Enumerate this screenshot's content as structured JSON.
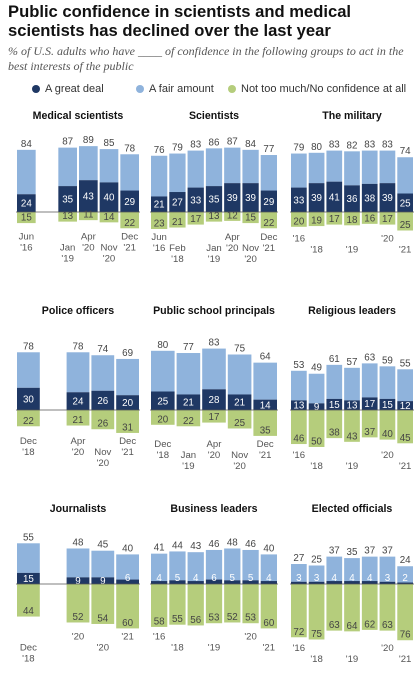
{
  "title": "Public confidence in scientists and medical scientists has declined over the last year",
  "subtitle": "% of U.S. adults who have ____ of confidence in the following groups to act in the best interests of the public",
  "legend": {
    "great": "A great deal",
    "fair": "A fair amount",
    "not": "Not too much/No confidence at all"
  },
  "colors": {
    "great": "#1f3864",
    "fair": "#8fb3dc",
    "not": "#b5cd7c",
    "text_light": "#ffffff",
    "text_dark": "#444444"
  },
  "chart_data": [
    {
      "type": "bar",
      "title": "Medical scientists",
      "great": [
        24,
        null,
        35,
        43,
        40,
        29
      ],
      "fair": [
        84,
        null,
        87,
        89,
        85,
        78
      ],
      "not": [
        15,
        null,
        13,
        11,
        14,
        22
      ],
      "xlabels": [
        {
          "i": 0,
          "lines": [
            "Jun",
            "'16"
          ]
        },
        {
          "i": 2,
          "lines": [
            "",
            "Jan",
            "'19"
          ]
        },
        {
          "i": 3,
          "lines": [
            "Apr",
            "'20"
          ]
        },
        {
          "i": 4,
          "lines": [
            "",
            "Nov",
            "'20"
          ]
        },
        {
          "i": 5,
          "lines": [
            "Dec",
            "'21"
          ]
        }
      ]
    },
    {
      "type": "bar",
      "title": "Scientists",
      "great": [
        21,
        27,
        33,
        35,
        39,
        39,
        29
      ],
      "fair": [
        76,
        79,
        83,
        86,
        87,
        84,
        77
      ],
      "not": [
        23,
        21,
        17,
        13,
        12,
        15,
        22
      ],
      "xlabels": [
        {
          "i": 0,
          "lines": [
            "Jun",
            "'16"
          ]
        },
        {
          "i": 1,
          "lines": [
            "",
            "Feb",
            "'18"
          ]
        },
        {
          "i": 3,
          "lines": [
            "",
            "Jan",
            "'19"
          ]
        },
        {
          "i": 4,
          "lines": [
            "Apr",
            "'20"
          ]
        },
        {
          "i": 5,
          "lines": [
            "",
            "Nov",
            "'20"
          ]
        },
        {
          "i": 6,
          "lines": [
            "Dec",
            "'21"
          ]
        }
      ]
    },
    {
      "type": "bar",
      "title": "The military",
      "great": [
        33,
        39,
        41,
        36,
        38,
        39,
        25
      ],
      "fair": [
        79,
        80,
        83,
        82,
        83,
        83,
        74
      ],
      "not": [
        20,
        19,
        17,
        18,
        16,
        17,
        25
      ],
      "xlabels": [
        {
          "i": 0,
          "lines": [
            "'16"
          ]
        },
        {
          "i": 1,
          "lines": [
            "",
            "'18"
          ]
        },
        {
          "i": 3,
          "lines": [
            "",
            "'19"
          ]
        },
        {
          "i": 5,
          "lines": [
            "'20"
          ]
        },
        {
          "i": 6,
          "lines": [
            "",
            "'21"
          ]
        }
      ]
    },
    {
      "type": "bar",
      "title": "Police officers",
      "great": [
        30,
        null,
        24,
        26,
        20
      ],
      "fair": [
        78,
        null,
        78,
        74,
        69
      ],
      "not": [
        22,
        null,
        21,
        26,
        31
      ],
      "xlabels": [
        {
          "i": 0,
          "lines": [
            "Dec",
            "'18"
          ]
        },
        {
          "i": 2,
          "lines": [
            "Apr",
            "'20"
          ]
        },
        {
          "i": 3,
          "lines": [
            "",
            "Nov",
            "'20"
          ]
        },
        {
          "i": 4,
          "lines": [
            "Dec",
            "'21"
          ]
        }
      ]
    },
    {
      "type": "bar",
      "title": "Public school principals",
      "great": [
        25,
        21,
        28,
        21,
        14
      ],
      "fair": [
        80,
        77,
        83,
        75,
        64
      ],
      "not": [
        20,
        22,
        17,
        25,
        35
      ],
      "xlabels": [
        {
          "i": 0,
          "lines": [
            "Dec",
            "'18"
          ]
        },
        {
          "i": 1,
          "lines": [
            "",
            "Jan",
            "'19"
          ]
        },
        {
          "i": 2,
          "lines": [
            "Apr",
            "'20"
          ]
        },
        {
          "i": 3,
          "lines": [
            "",
            "Nov",
            "'20"
          ]
        },
        {
          "i": 4,
          "lines": [
            "Dec",
            "'21"
          ]
        }
      ]
    },
    {
      "type": "bar",
      "title": "Religious leaders",
      "great": [
        13,
        9,
        15,
        13,
        17,
        15,
        12
      ],
      "fair": [
        53,
        49,
        61,
        57,
        63,
        59,
        55
      ],
      "not": [
        46,
        50,
        38,
        43,
        37,
        40,
        45
      ],
      "xlabels": [
        {
          "i": 0,
          "lines": [
            "'16"
          ]
        },
        {
          "i": 1,
          "lines": [
            "",
            "'18"
          ]
        },
        {
          "i": 3,
          "lines": [
            "",
            "'19"
          ]
        },
        {
          "i": 5,
          "lines": [
            "'20"
          ]
        },
        {
          "i": 6,
          "lines": [
            "",
            "'21"
          ]
        }
      ]
    },
    {
      "type": "bar",
      "title": "Journalists",
      "great": [
        15,
        null,
        9,
        9,
        6
      ],
      "fair": [
        55,
        null,
        48,
        45,
        40
      ],
      "not": [
        44,
        null,
        52,
        54,
        60
      ],
      "xlabels": [
        {
          "i": 0,
          "lines": [
            "",
            "Dec",
            "'18"
          ]
        },
        {
          "i": 2,
          "lines": [
            "'20"
          ]
        },
        {
          "i": 3,
          "lines": [
            "",
            "'20"
          ]
        },
        {
          "i": 4,
          "lines": [
            "'21"
          ]
        }
      ]
    },
    {
      "type": "bar",
      "title": "Business leaders",
      "great": [
        4,
        5,
        4,
        6,
        5,
        5,
        4
      ],
      "fair": [
        41,
        44,
        43,
        46,
        48,
        46,
        40
      ],
      "not": [
        58,
        55,
        56,
        53,
        52,
        53,
        60
      ],
      "xlabels": [
        {
          "i": 0,
          "lines": [
            "'16"
          ]
        },
        {
          "i": 1,
          "lines": [
            "",
            "'18"
          ]
        },
        {
          "i": 3,
          "lines": [
            "",
            "'19"
          ]
        },
        {
          "i": 5,
          "lines": [
            "'20"
          ]
        },
        {
          "i": 6,
          "lines": [
            "",
            "'21"
          ]
        }
      ]
    },
    {
      "type": "bar",
      "title": "Elected officials",
      "great": [
        3,
        3,
        4,
        4,
        4,
        3,
        2
      ],
      "fair": [
        27,
        25,
        37,
        35,
        37,
        37,
        24
      ],
      "not": [
        72,
        75,
        63,
        64,
        62,
        63,
        76
      ],
      "xlabels": [
        {
          "i": 0,
          "lines": [
            "'16"
          ]
        },
        {
          "i": 1,
          "lines": [
            "",
            "'18"
          ]
        },
        {
          "i": 3,
          "lines": [
            "",
            "'19"
          ]
        },
        {
          "i": 5,
          "lines": [
            "'20"
          ]
        },
        {
          "i": 6,
          "lines": [
            "",
            "'21"
          ]
        }
      ]
    }
  ]
}
